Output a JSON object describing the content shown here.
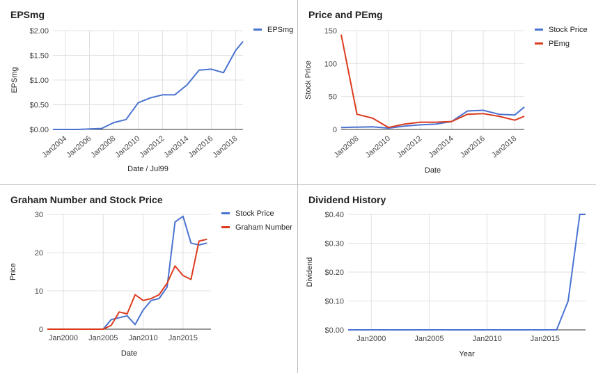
{
  "colors": {
    "blue": "#4a73d1",
    "red": "#dc3a1e",
    "grid": "#e0e0e0",
    "axis": "#444444",
    "text": "#222222"
  },
  "chart_data": [
    {
      "type": "line",
      "title": "EPSmg",
      "xlabel": "Date / Jul99",
      "ylabel": "EPSmg",
      "x": [
        2003,
        2004,
        2005,
        2006,
        2007,
        2008,
        2009,
        2010,
        2011,
        2012,
        2013,
        2014,
        2015,
        2016,
        2017,
        2018,
        2018.6
      ],
      "series": [
        {
          "name": "EPSmg",
          "color": "#4a73d1",
          "values": [
            0.0,
            0.0,
            0.0,
            0.01,
            0.02,
            0.14,
            0.2,
            0.54,
            0.64,
            0.7,
            0.7,
            0.9,
            1.2,
            1.22,
            1.15,
            1.6,
            1.78
          ]
        }
      ],
      "xlim": [
        2003,
        2018.6
      ],
      "ylim": [
        0,
        2
      ],
      "yticks": [
        0,
        0.5,
        1,
        1.5,
        2
      ],
      "ytick_labels": [
        "$0.00",
        "$0.50",
        "$1.00",
        "$1.50",
        "$2.00"
      ],
      "xticks": [
        2004,
        2006,
        2008,
        2010,
        2012,
        2014,
        2016,
        2018
      ],
      "xtick_labels": [
        "Jan2004",
        "Jan2006",
        "Jan2008",
        "Jan2010",
        "Jan2012",
        "Jan2014",
        "Jan2016",
        "Jan2018"
      ],
      "xtick_rotation": -40,
      "legend": "right",
      "grid": true
    },
    {
      "type": "line",
      "title": "Price and PEmg",
      "xlabel": "Date",
      "ylabel": "Stock Price",
      "x": [
        2007,
        2008,
        2009,
        2010,
        2011,
        2012,
        2013,
        2014,
        2015,
        2016,
        2017,
        2018,
        2018.6
      ],
      "series": [
        {
          "name": "Stock Price",
          "color": "#4a73d1",
          "values": [
            3,
            3.5,
            4,
            2,
            5,
            7,
            8,
            12,
            28,
            29,
            23,
            22,
            34
          ]
        },
        {
          "name": "PEmg",
          "color": "#dc3a1e",
          "values": [
            144,
            23,
            17,
            3,
            8,
            11,
            11,
            12,
            23,
            24,
            20,
            14,
            20
          ]
        }
      ],
      "xlim": [
        2007,
        2018.6
      ],
      "ylim": [
        0,
        150
      ],
      "yticks": [
        0,
        50,
        100,
        150
      ],
      "ytick_labels": [
        "0",
        "50",
        "100",
        "150"
      ],
      "xticks": [
        2008,
        2010,
        2012,
        2014,
        2016,
        2018
      ],
      "xtick_labels": [
        "Jan2008",
        "Jan2010",
        "Jan2012",
        "Jan2014",
        "Jan2016",
        "Jan2018"
      ],
      "xtick_rotation": -40,
      "legend": "right",
      "grid": true
    },
    {
      "type": "line",
      "title": "Graham Number and Stock Price",
      "xlabel": "Date",
      "ylabel": "Price",
      "x": [
        1998,
        1999,
        2000,
        2001,
        2002,
        2003,
        2004,
        2005,
        2006,
        2007,
        2008,
        2009,
        2010,
        2011,
        2012,
        2013,
        2014,
        2015,
        2016,
        2017,
        2018
      ],
      "series": [
        {
          "name": "Stock Price",
          "color": "#4a73d1",
          "values": [
            0,
            0,
            0,
            0,
            0,
            0,
            0,
            0,
            2.5,
            3,
            3.5,
            1.2,
            5,
            7.5,
            8,
            11,
            28,
            29.5,
            22.5,
            22,
            22.5
          ]
        },
        {
          "name": "Graham Number",
          "color": "#dc3a1e",
          "values": [
            0,
            0,
            0,
            0,
            0,
            0,
            0,
            0,
            1,
            4.5,
            4,
            9,
            7.5,
            8,
            9,
            12,
            16.5,
            14,
            13,
            23,
            23.5
          ]
        }
      ],
      "xlim": [
        1998,
        2018.5
      ],
      "ylim": [
        0,
        30
      ],
      "yticks": [
        0,
        10,
        20,
        30
      ],
      "ytick_labels": [
        "0",
        "10",
        "20",
        "30"
      ],
      "xticks": [
        2000,
        2005,
        2010,
        2015
      ],
      "xtick_labels": [
        "Jan2000",
        "Jan2005",
        "Jan2010",
        "Jan2015"
      ],
      "xtick_rotation": 0,
      "legend": "right",
      "grid": true
    },
    {
      "type": "line",
      "title": "Dividend History",
      "xlabel": "Year",
      "ylabel": "Dividend",
      "x": [
        1998,
        2016,
        2017,
        2018,
        2018.5
      ],
      "series": [
        {
          "name": "",
          "color": "#4a73d1",
          "values": [
            0,
            0,
            0.1,
            0.4,
            0.4
          ]
        }
      ],
      "xlim": [
        1998,
        2018.5
      ],
      "ylim": [
        0,
        0.4
      ],
      "yticks": [
        0,
        0.1,
        0.2,
        0.3,
        0.4
      ],
      "ytick_labels": [
        "$0.00",
        "$0.10",
        "$0.20",
        "$0.30",
        "$0.40"
      ],
      "xticks": [
        2000,
        2005,
        2010,
        2015
      ],
      "xtick_labels": [
        "Jan2000",
        "Jan2005",
        "Jan2010",
        "Jan2015"
      ],
      "xtick_rotation": 0,
      "legend": "none",
      "grid": true
    }
  ]
}
